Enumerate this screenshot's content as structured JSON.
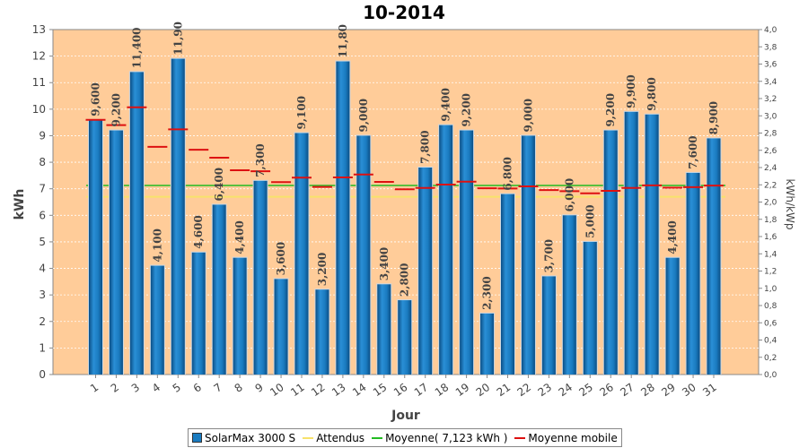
{
  "chart_data": {
    "type": "bar",
    "title": "10-2014",
    "xlabel": "Jour",
    "ylabel": "kWh",
    "y2label": "kWh/kWp",
    "ylim": [
      0,
      13
    ],
    "y2lim": [
      0,
      4.0
    ],
    "categories": [
      "1",
      "2",
      "3",
      "4",
      "5",
      "6",
      "7",
      "8",
      "9",
      "10",
      "11",
      "12",
      "13",
      "14",
      "15",
      "16",
      "17",
      "18",
      "19",
      "20",
      "21",
      "22",
      "23",
      "24",
      "25",
      "26",
      "27",
      "28",
      "29",
      "30",
      "31"
    ],
    "series": [
      {
        "name": "SolarMax 3000 S",
        "kind": "bar",
        "color": "#1A7BC0",
        "values": [
          9.6,
          9.2,
          11.4,
          4.1,
          11.9,
          4.6,
          6.4,
          4.4,
          7.3,
          3.6,
          9.1,
          3.2,
          11.8,
          9.0,
          3.4,
          2.8,
          7.8,
          9.4,
          9.2,
          2.3,
          6.8,
          9.0,
          3.7,
          6.0,
          5.0,
          9.2,
          9.9,
          9.8,
          4.4,
          7.6,
          8.9
        ],
        "labels": [
          "9,600",
          "9,200",
          "11,400",
          "4,100",
          "11,90",
          "4,600",
          "6,400",
          "4,400",
          "7,300",
          "3,600",
          "9,100",
          "3,200",
          "11,80",
          "9,000",
          "3,400",
          "2,800",
          "7,800",
          "9,400",
          "9,200",
          "2,300",
          "6,800",
          "9,000",
          "3,700",
          "6,000",
          "5,000",
          "9,200",
          "9,900",
          "9,800",
          "4,400",
          "7,600",
          "8,900"
        ]
      },
      {
        "name": "Attendus",
        "kind": "line",
        "color": "#F7E26B",
        "values": [
          6.7,
          6.7,
          6.7,
          6.7,
          6.7,
          6.7,
          6.7,
          6.7,
          6.7,
          6.7,
          6.7,
          6.7,
          6.7,
          6.7,
          6.7,
          6.7,
          6.7,
          6.7,
          6.7,
          6.7,
          6.7,
          6.7,
          6.7,
          6.7,
          6.7,
          6.7,
          6.7,
          6.7,
          6.7,
          6.7,
          6.7
        ]
      },
      {
        "name": "Moyenne( 7,123 kWh )",
        "kind": "line",
        "color": "#22BB22",
        "values": [
          7.123,
          7.123,
          7.123,
          7.123,
          7.123,
          7.123,
          7.123,
          7.123,
          7.123,
          7.123,
          7.123,
          7.123,
          7.123,
          7.123,
          7.123,
          7.123,
          7.123,
          7.123,
          7.123,
          7.123,
          7.123,
          7.123,
          7.123,
          7.123,
          7.123,
          7.123,
          7.123,
          7.123,
          7.123,
          7.123,
          7.123
        ]
      },
      {
        "name": "Moyenne mobile",
        "kind": "marker",
        "color": "#DD1111",
        "values": [
          9.6,
          9.4,
          10.07,
          8.58,
          9.24,
          8.47,
          8.17,
          7.7,
          7.66,
          7.25,
          7.42,
          7.07,
          7.43,
          7.54,
          7.26,
          6.98,
          7.03,
          7.16,
          7.27,
          7.02,
          7.01,
          7.09,
          6.95,
          6.91,
          6.83,
          6.92,
          7.03,
          7.13,
          7.04,
          7.06,
          7.12
        ]
      }
    ],
    "background_color": "#FFCC99",
    "grid": true,
    "legend_position": "bottom"
  }
}
